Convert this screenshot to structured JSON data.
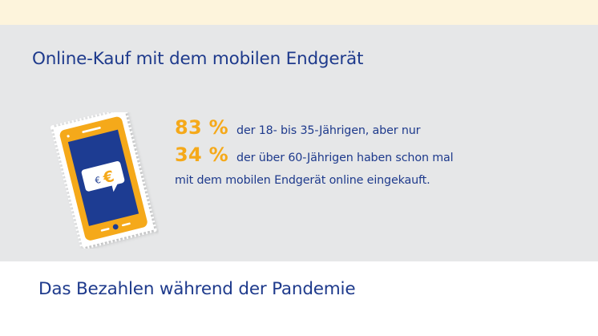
{
  "colors": {
    "top_band": "#fdf4dc",
    "panel_background": "#e6e7e8",
    "title_blue": "#1e3a8c",
    "accent_orange": "#f5a91a",
    "phone_screen": "#1d3c92",
    "page_background": "#ffffff"
  },
  "panel": {
    "title": "Online-Kauf mit dem mobilen Endgerät"
  },
  "illustration": {
    "icon": "smartphone-euro-icon",
    "bubble_symbol_small": "€",
    "bubble_symbol_large": "€"
  },
  "stats": [
    {
      "value": "83 %",
      "text": "der 18- bis 35-Jährigen, aber nur"
    },
    {
      "value": "34 %",
      "text": "der über 60-Jährigen haben schon mal"
    }
  ],
  "stats_tail": "mit dem mobilen Endgerät online eingekauft.",
  "next_section": {
    "title": "Das Bezahlen während der Pandemie"
  }
}
